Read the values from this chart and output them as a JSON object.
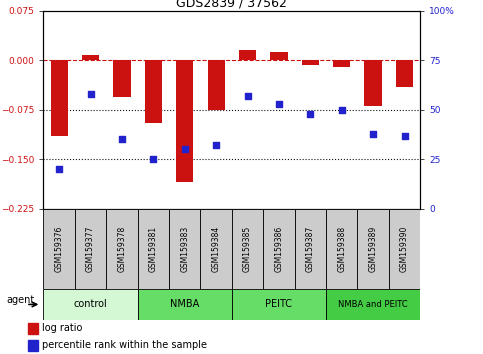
{
  "title": "GDS2839 / 37562",
  "samples": [
    "GSM159376",
    "GSM159377",
    "GSM159378",
    "GSM159381",
    "GSM159383",
    "GSM159384",
    "GSM159385",
    "GSM159386",
    "GSM159387",
    "GSM159388",
    "GSM159389",
    "GSM159390"
  ],
  "log_ratio": [
    -0.115,
    0.008,
    -0.055,
    -0.095,
    -0.185,
    -0.075,
    0.015,
    0.013,
    -0.008,
    -0.01,
    -0.07,
    -0.04
  ],
  "percentile_rank": [
    20,
    58,
    35,
    25,
    30,
    32,
    57,
    53,
    48,
    50,
    38,
    37
  ],
  "ylim_left": [
    -0.225,
    0.075
  ],
  "ylim_right": [
    0,
    100
  ],
  "yticks_left": [
    0.075,
    0,
    -0.075,
    -0.15,
    -0.225
  ],
  "yticks_right": [
    100,
    75,
    50,
    25,
    0
  ],
  "groups": [
    {
      "label": "control",
      "start": 0,
      "end": 3,
      "color": "#d4f7d4"
    },
    {
      "label": "NMBA",
      "start": 3,
      "end": 6,
      "color": "#66dd66"
    },
    {
      "label": "PEITC",
      "start": 6,
      "end": 9,
      "color": "#66dd66"
    },
    {
      "label": "NMBA and PEITC",
      "start": 9,
      "end": 12,
      "color": "#44cc44"
    }
  ],
  "bar_color": "#cc1111",
  "dot_color": "#2222cc",
  "hline_color": "#cc1111",
  "dotted_line_color": "#111111",
  "bar_width": 0.55,
  "dot_size": 25,
  "label_fontsize": 5.5,
  "tick_fontsize": 6.5,
  "title_fontsize": 9
}
